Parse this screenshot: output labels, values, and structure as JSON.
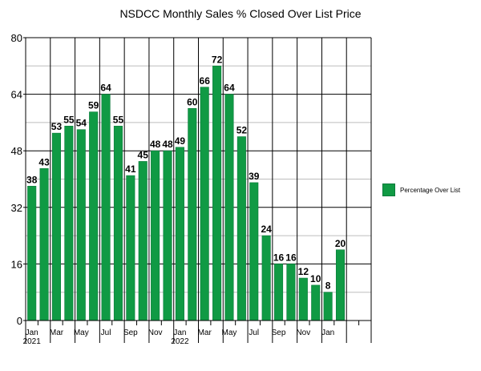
{
  "chart_data": {
    "type": "bar",
    "title": "NSDCC Monthly Sales % Closed Over List Price",
    "xlabel": "",
    "ylabel": "",
    "ylim": [
      0,
      80
    ],
    "yticks": [
      "0",
      "16",
      "32",
      "48",
      "64",
      "80"
    ],
    "grid": true,
    "legend_position": "right",
    "colors": {
      "bar": "#109a44",
      "bar_edge": "#0b7a3b",
      "axis": "#000000",
      "grid_minor": "#bdbdbd"
    },
    "categories": [
      "Jan 2021",
      "Feb 2021",
      "Mar 2021",
      "Apr 2021",
      "May 2021",
      "Jun 2021",
      "Jul 2021",
      "Aug 2021",
      "Sep 2021",
      "Oct 2021",
      "Nov 2021",
      "Dec 2021",
      "Jan 2022",
      "Feb 2022",
      "Mar 2022",
      "Apr 2022",
      "May 2022",
      "Jun 2022",
      "Jul 2022",
      "Aug 2022",
      "Sep 2022",
      "Oct 2022",
      "Nov 2022",
      "Dec 2022",
      "Jan 2023",
      "Feb 2023"
    ],
    "tick_labels": [
      {
        "index": 0,
        "line1": "Jan",
        "line2": "2021"
      },
      {
        "index": 2,
        "line1": "Mar",
        "line2": ""
      },
      {
        "index": 4,
        "line1": "May",
        "line2": ""
      },
      {
        "index": 6,
        "line1": "Jul",
        "line2": ""
      },
      {
        "index": 8,
        "line1": "Sep",
        "line2": ""
      },
      {
        "index": 10,
        "line1": "Nov",
        "line2": ""
      },
      {
        "index": 12,
        "line1": "Jan",
        "line2": "2022"
      },
      {
        "index": 14,
        "line1": "Mar",
        "line2": ""
      },
      {
        "index": 16,
        "line1": "May",
        "line2": ""
      },
      {
        "index": 18,
        "line1": "Jul",
        "line2": ""
      },
      {
        "index": 20,
        "line1": "Sep",
        "line2": ""
      },
      {
        "index": 22,
        "line1": "Nov",
        "line2": ""
      },
      {
        "index": 24,
        "line1": "Jan",
        "line2": ""
      }
    ],
    "series": [
      {
        "name": "Percentage Over List",
        "values": [
          38,
          43,
          53,
          55,
          54,
          59,
          64,
          55,
          41,
          45,
          48,
          48,
          49,
          60,
          66,
          72,
          64,
          52,
          39,
          24,
          16,
          16,
          12,
          10,
          8,
          20
        ]
      }
    ],
    "total_slots": 28
  }
}
